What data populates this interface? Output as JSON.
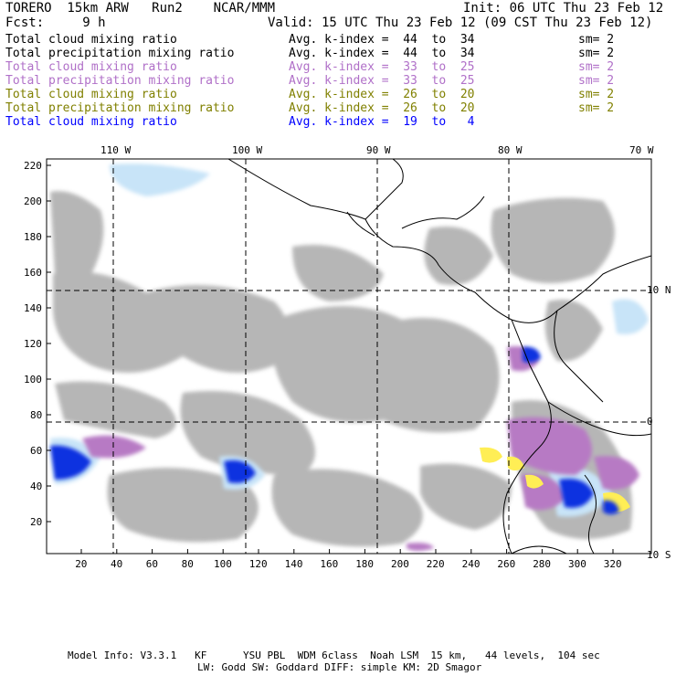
{
  "header": {
    "left1": "TORERO  15km ARW   Run2    NCAR/MMM",
    "right1": "Init: 06 UTC Thu 23 Feb 12",
    "left2": "Fcst:     9 h",
    "right2": "Valid: 15 UTC Thu 23 Feb 12 (09 CST Thu 23 Feb 12)"
  },
  "fields": [
    {
      "name": "Total cloud mixing ratio",
      "kindex": "Avg. k-index =  44  to  34",
      "sm": "sm= 2",
      "color": "#000000"
    },
    {
      "name": "Total precipitation mixing ratio",
      "kindex": "Avg. k-index =  44  to  34",
      "sm": "sm= 2",
      "color": "#000000"
    },
    {
      "name": "Total cloud mixing ratio",
      "kindex": "Avg. k-index =  33  to  25",
      "sm": "sm= 2",
      "color": "#b070c8"
    },
    {
      "name": "Total precipitation mixing ratio",
      "kindex": "Avg. k-index =  33  to  25",
      "sm": "sm= 2",
      "color": "#b070c8"
    },
    {
      "name": "Total cloud mixing ratio",
      "kindex": "Avg. k-index =  26  to  20",
      "sm": "sm= 2",
      "color": "#808000"
    },
    {
      "name": "Total precipitation mixing ratio",
      "kindex": "Avg. k-index =  26  to  20",
      "sm": "sm= 2",
      "color": "#808000"
    },
    {
      "name": "Total cloud mixing ratio",
      "kindex": "Avg. k-index =  19  to   4",
      "sm": "",
      "color": "#0000ff"
    }
  ],
  "map": {
    "lon_labels": [
      "110 W",
      "100 W",
      "90 W",
      "80 W",
      "70 W"
    ],
    "lat_labels": [
      "10 N",
      "0",
      "10 S"
    ],
    "y_ticks": [
      "220",
      "200",
      "180",
      "160",
      "140",
      "120",
      "100",
      "80",
      "60",
      "40",
      "20"
    ],
    "x_ticks": [
      "20",
      "40",
      "60",
      "80",
      "100",
      "120",
      "140",
      "160",
      "180",
      "200",
      "220",
      "240",
      "260",
      "280",
      "300",
      "320"
    ],
    "colors": {
      "cloud_gray": "#b3b3b3",
      "purple": "#b77ac4",
      "light_blue": "#c8e4f8",
      "blue": "#1030e0",
      "yellow": "#ffee55",
      "coast": "#000000"
    }
  },
  "footer": {
    "line1": "Model Info: V3.3.1   KF      YSU PBL  WDM 6class  Noah LSM  15 km,   44 levels,  104 sec",
    "line2": "LW: Godd SW: Goddard DIFF: simple KM: 2D Smagor"
  }
}
